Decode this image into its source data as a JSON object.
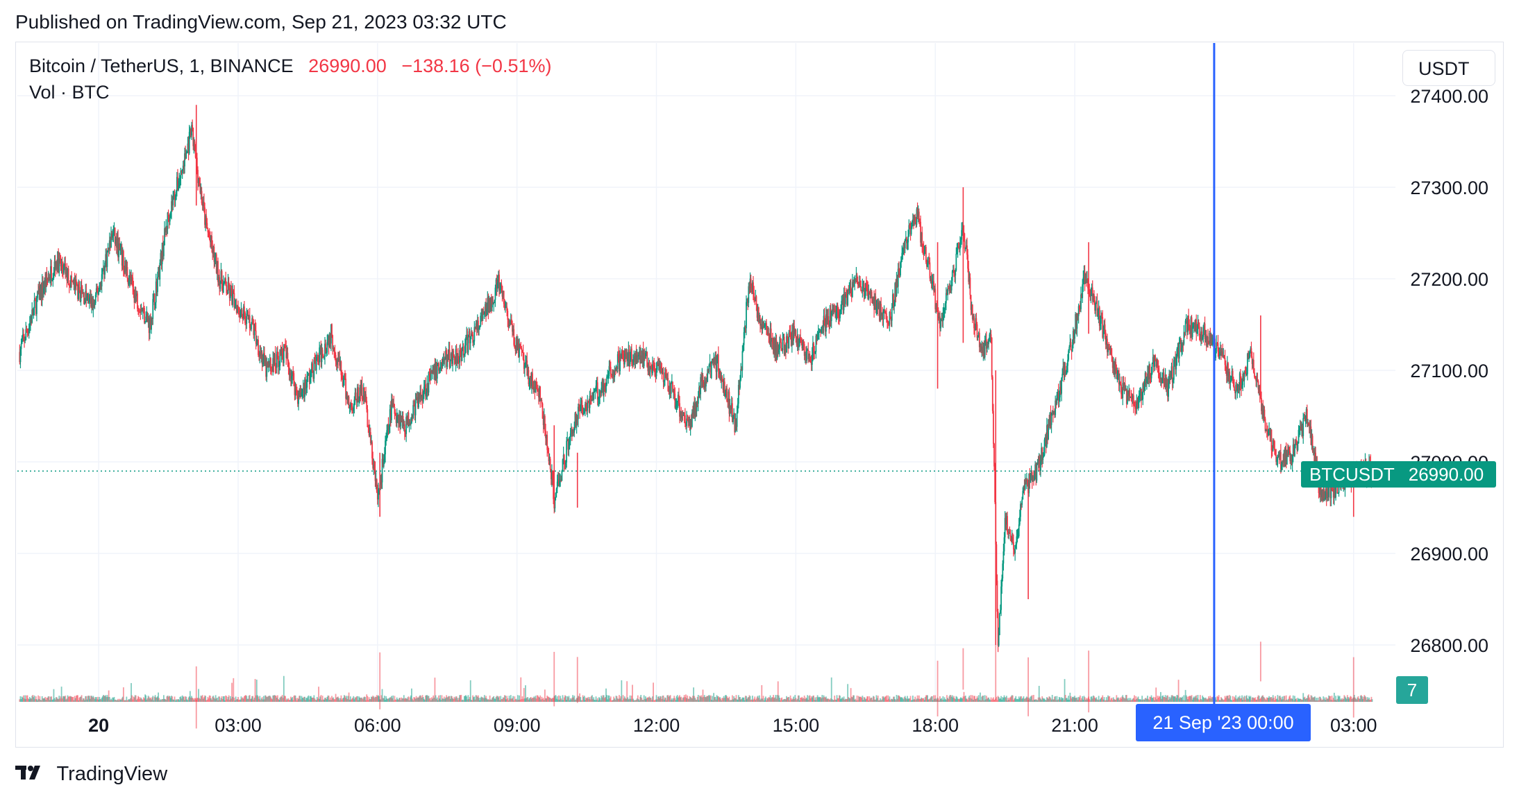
{
  "header": {
    "published": "Published on TradingView.com, Sep 21, 2023 03:32 UTC"
  },
  "legend": {
    "symbol": "Bitcoin / TetherUS, 1, BINANCE",
    "last": "26990.00",
    "change": "−138.16 (−0.51%)",
    "volume_label": "Vol · BTC"
  },
  "currency_button": "USDT",
  "symbol_tag": "BTCUSDT",
  "price_tag": "26990.00",
  "volume_tag": "7",
  "crosshair_time_label": "21 Sep '23   00:00",
  "footer": {
    "brand": "TradingView"
  },
  "colors": {
    "up": "#089981",
    "down": "#f23645",
    "crosshair": "#2962ff",
    "grid": "#f0f3fa",
    "text": "#131722"
  },
  "chart_data": {
    "type": "candlestick",
    "title": "Bitcoin / TetherUS, 1, BINANCE",
    "ylabel": "USDT",
    "ylim": [
      26740,
      27460
    ],
    "yticks": [
      26800,
      26900,
      27000,
      27100,
      27200,
      27300,
      27400
    ],
    "ytick_labels": [
      "26800.00",
      "26900.00",
      "27000.00",
      "27100.00",
      "27200.00",
      "27300.00",
      "27400.00"
    ],
    "xticks": [
      {
        "label": "20",
        "t": 0
      },
      {
        "label": "03:00",
        "t": 3
      },
      {
        "label": "06:00",
        "t": 6
      },
      {
        "label": "09:00",
        "t": 9
      },
      {
        "label": "12:00",
        "t": 12
      },
      {
        "label": "15:00",
        "t": 15
      },
      {
        "label": "18:00",
        "t": 18
      },
      {
        "label": "21:00",
        "t": 21
      },
      {
        "label": "03:00",
        "t": 27
      }
    ],
    "xlim_hours": [
      -1.75,
      27.9
    ],
    "crosshair_hour": 24,
    "last_price": 26990,
    "path_hours": [
      -1.7,
      -1.3,
      -0.9,
      -0.5,
      -0.1,
      0.3,
      0.8,
      1.1,
      1.5,
      1.8,
      2.0,
      2.3,
      2.6,
      3.0,
      3.3,
      3.6,
      4.0,
      4.3,
      4.6,
      5.0,
      5.4,
      5.7,
      6.0,
      6.3,
      6.6,
      7.0,
      7.4,
      7.8,
      8.2,
      8.6,
      8.9,
      9.2,
      9.5,
      9.8,
      10.2,
      10.4,
      10.8,
      11.2,
      11.6,
      12.0,
      12.3,
      12.7,
      13.0,
      13.3,
      13.7,
      14.0,
      14.2,
      14.6,
      15.0,
      15.3,
      15.6,
      16.0,
      16.3,
      16.6,
      17.0,
      17.3,
      17.6,
      17.9,
      18.1,
      18.4,
      18.6,
      18.8,
      19.0,
      19.2,
      19.35,
      19.5,
      19.7,
      19.9,
      20.2,
      20.5,
      20.9,
      21.2,
      21.4,
      21.7,
      22.0,
      22.3,
      22.7,
      23.0,
      23.4,
      23.8,
      24.2,
      24.5,
      24.8,
      25.1,
      25.4,
      25.7,
      26.0,
      26.3,
      26.6,
      26.9,
      27.2,
      27.4
    ],
    "path_prices": [
      27120,
      27180,
      27220,
      27190,
      27170,
      27250,
      27180,
      27150,
      27270,
      27320,
      27360,
      27260,
      27200,
      27170,
      27150,
      27100,
      27120,
      27070,
      27100,
      27140,
      27060,
      27080,
      26960,
      27060,
      27040,
      27080,
      27110,
      27120,
      27150,
      27195,
      27140,
      27100,
      27070,
      26960,
      27040,
      27060,
      27080,
      27110,
      27120,
      27100,
      27080,
      27040,
      27090,
      27110,
      27040,
      27200,
      27160,
      27120,
      27140,
      27110,
      27150,
      27170,
      27200,
      27180,
      27150,
      27230,
      27270,
      27200,
      27150,
      27210,
      27260,
      27160,
      27120,
      27140,
      26800,
      26940,
      26900,
      26970,
      26990,
      27050,
      27120,
      27200,
      27180,
      27130,
      27080,
      27060,
      27110,
      27080,
      27150,
      27140,
      27110,
      27080,
      27120,
      27040,
      27000,
      27010,
      27050,
      26960,
      26970,
      26980,
      26990,
      26990
    ],
    "spikes": [
      {
        "h": 2.1,
        "high": 27390,
        "low": 27280
      },
      {
        "h": 6.05,
        "high": 27010,
        "low": 26940
      },
      {
        "h": 9.8,
        "high": 27040,
        "low": 26950
      },
      {
        "h": 10.3,
        "high": 27010,
        "low": 26950
      },
      {
        "h": 18.6,
        "high": 27300,
        "low": 27130
      },
      {
        "h": 18.05,
        "high": 27240,
        "low": 27080
      },
      {
        "h": 19.3,
        "high": 27100,
        "low": 26800
      },
      {
        "h": 20.0,
        "high": 26970,
        "low": 26850
      },
      {
        "h": 21.3,
        "high": 27240,
        "low": 27140
      },
      {
        "h": 25.0,
        "high": 27160,
        "low": 27070
      },
      {
        "h": 27.0,
        "high": 26990,
        "low": 26940
      }
    ]
  }
}
